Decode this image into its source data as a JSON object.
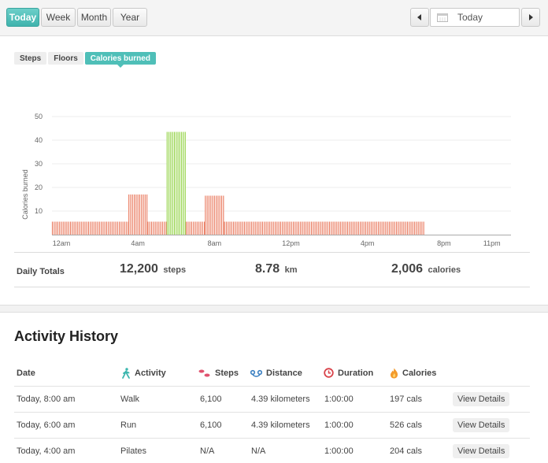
{
  "toolbar": {
    "ranges": [
      "Today",
      "Week",
      "Month",
      "Year"
    ],
    "active_range": "Today",
    "date_value": "Today"
  },
  "metric_tabs": {
    "items": [
      "Steps",
      "Floors",
      "Calories burned"
    ],
    "active": "Calories burned"
  },
  "chart_data": {
    "type": "bar",
    "ylabel": "Calories burned",
    "ylim": [
      0,
      50
    ],
    "yticks": [
      10,
      20,
      30,
      40,
      50
    ],
    "xlim": [
      0,
      24
    ],
    "xticks": [
      {
        "hour": 0,
        "label": "12am"
      },
      {
        "hour": 4,
        "label": "4am"
      },
      {
        "hour": 8,
        "label": "8am"
      },
      {
        "hour": 12,
        "label": "12pm"
      },
      {
        "hour": 16,
        "label": "4pm"
      },
      {
        "hour": 20,
        "label": "8pm"
      },
      {
        "hour": 23,
        "label": "11pm"
      }
    ],
    "grid": true,
    "series": [
      {
        "segments": [
          {
            "start_hour": 0,
            "end_hour": 4,
            "value": 5.5,
            "color": "#e9775b"
          },
          {
            "start_hour": 4,
            "end_hour": 5,
            "value": 17,
            "color": "#e9775b"
          },
          {
            "start_hour": 5,
            "end_hour": 6,
            "value": 5.5,
            "color": "#e9775b"
          },
          {
            "start_hour": 6,
            "end_hour": 7,
            "value": 43.5,
            "color": "#8fd13f"
          },
          {
            "start_hour": 7,
            "end_hour": 8,
            "value": 5.5,
            "color": "#e9775b"
          },
          {
            "start_hour": 8,
            "end_hour": 9,
            "value": 16.5,
            "color": "#e9775b"
          },
          {
            "start_hour": 9,
            "end_hour": 19.5,
            "value": 5.5,
            "color": "#e9775b"
          }
        ]
      }
    ]
  },
  "daily_totals": {
    "label": "Daily Totals",
    "steps": {
      "value": "12,200",
      "unit": "steps"
    },
    "distance": {
      "value": "8.78",
      "unit": "km"
    },
    "calories": {
      "value": "2,006",
      "unit": "calories"
    }
  },
  "history": {
    "title": "Activity History",
    "columns": {
      "date": "Date",
      "activity": "Activity",
      "steps": "Steps",
      "distance": "Distance",
      "duration": "Duration",
      "calories": "Calories"
    },
    "icon_colors": {
      "activity": "#3cb6ae",
      "steps": "#e0526e",
      "distance": "#3a7fc1",
      "duration": "#d9434a",
      "calories": "#f39a2c"
    },
    "rows": [
      {
        "date": "Today, 8:00 am",
        "activity": "Walk",
        "steps": "6,100",
        "distance": "4.39 kilometers",
        "duration": "1:00:00",
        "calories": "197 cals",
        "action": "View Details"
      },
      {
        "date": "Today, 6:00 am",
        "activity": "Run",
        "steps": "6,100",
        "distance": "4.39 kilometers",
        "duration": "1:00:00",
        "calories": "526 cals",
        "action": "View Details"
      },
      {
        "date": "Today, 4:00 am",
        "activity": "Pilates",
        "steps": "N/A",
        "distance": "N/A",
        "duration": "1:00:00",
        "calories": "204 cals",
        "action": "View Details"
      }
    ]
  }
}
